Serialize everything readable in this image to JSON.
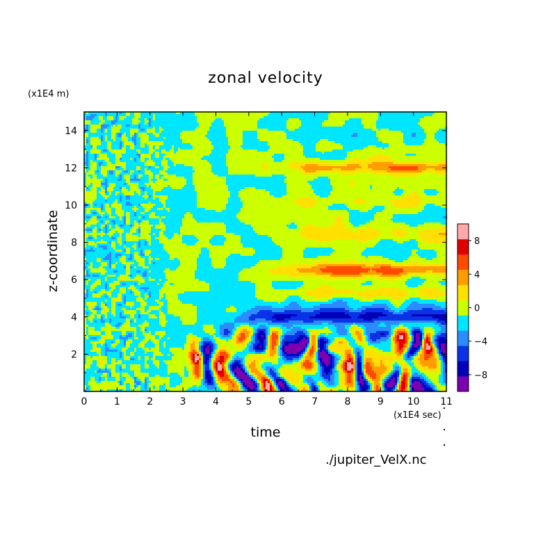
{
  "chart_data": {
    "type": "heatmap",
    "title": "zonal velocity",
    "xlabel": "time",
    "ylabel": "z-coordinate",
    "x_unit": "(x1E4 sec)",
    "y_unit": "(x1E4 m)",
    "xlim": [
      0,
      11
    ],
    "ylim": [
      0,
      15
    ],
    "x_ticks": [
      0,
      1,
      2,
      3,
      4,
      5,
      6,
      7,
      8,
      9,
      10,
      11
    ],
    "y_ticks": [
      2,
      4,
      6,
      8,
      10,
      12,
      14
    ],
    "colorbar": {
      "range": [
        -10,
        10
      ],
      "levels": [
        -10,
        -8,
        -6,
        -4,
        -2,
        0,
        2,
        4,
        6,
        8,
        10
      ],
      "tick_labels": [
        "8",
        "4",
        "0",
        "-4",
        "-8"
      ],
      "colors": [
        "#7a00b0",
        "#0000b8",
        "#0a32e6",
        "#2a8cff",
        "#00e6ff",
        "#ccff00",
        "#ffe000",
        "#ff9c00",
        "#ff4a00",
        "#e00000",
        "#ffaaaa"
      ]
    },
    "source_file": "./jupiter_VelX.nc",
    "description_of_field": {
      "early_noise_region_x": [
        0,
        2.2
      ],
      "front_height": 4.5,
      "front_start_time": 2.9,
      "positive_bands_z": [
        12.0,
        10.2,
        8.5,
        6.5,
        5.3
      ],
      "negative_band_z": 4.0
    }
  }
}
